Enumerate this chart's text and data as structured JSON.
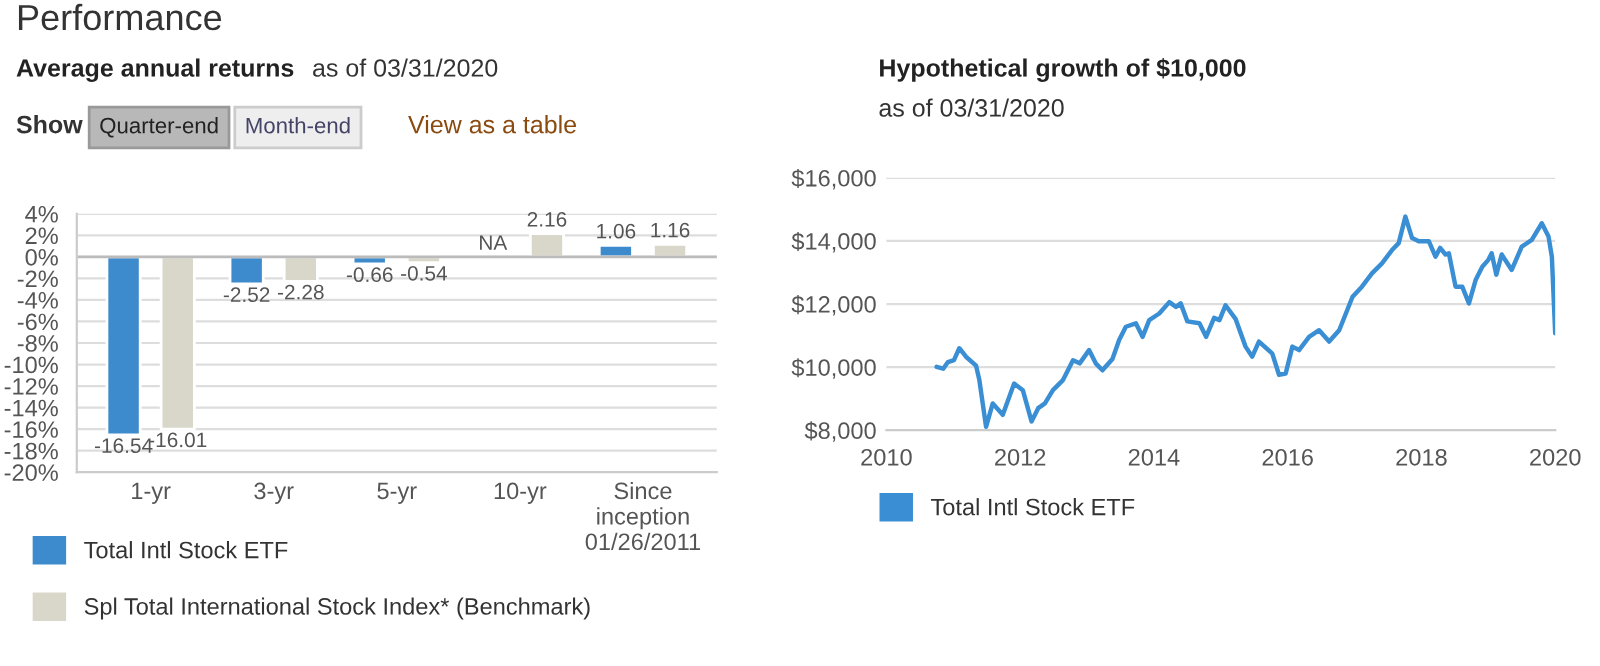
{
  "chart_data": [
    {
      "type": "bar",
      "title": "Average annual returns",
      "subtitle": "as of 03/31/2020",
      "annotations": [
        "Performance",
        "Show",
        "Quarter-end",
        "Month-end",
        "View as a table"
      ],
      "categories": [
        "1-yr",
        "3-yr",
        "5-yr",
        "10-yr",
        "Since inception 01/26/2011"
      ],
      "series": [
        {
          "name": "Total Intl Stock ETF",
          "color": "#3d8bcd",
          "values": [
            -16.54,
            -2.52,
            -0.66,
            null,
            1.06
          ],
          "value_labels": [
            "-16.54",
            "-2.52",
            "-0.66",
            "NA",
            "1.06"
          ]
        },
        {
          "name": "Spl Total International Stock Index* (Benchmark)",
          "color": "#d9d7c9",
          "values": [
            -16.01,
            -2.28,
            -0.54,
            2.16,
            1.16
          ],
          "value_labels": [
            "-16.01",
            "-2.28",
            "-0.54",
            "2.16",
            "1.16"
          ]
        }
      ],
      "ylim": [
        -20,
        4
      ],
      "yticks": [
        {
          "value": 4,
          "label": "4%"
        },
        {
          "value": 2,
          "label": "2%"
        },
        {
          "value": 0,
          "label": "0%"
        },
        {
          "value": -2,
          "label": "-2%"
        },
        {
          "value": -4,
          "label": "-4%"
        },
        {
          "value": -6,
          "label": "-6%"
        },
        {
          "value": -8,
          "label": "-8%"
        },
        {
          "value": -10,
          "label": "-10%"
        },
        {
          "value": -12,
          "label": "-12%"
        },
        {
          "value": -14,
          "label": "-14%"
        },
        {
          "value": -16,
          "label": "-16%"
        },
        {
          "value": -18,
          "label": "-18%"
        },
        {
          "value": -20,
          "label": "-20%"
        }
      ],
      "grid": "y",
      "legend": "bottom"
    },
    {
      "type": "line",
      "title": "Hypothetical growth of $10,000",
      "subtitle": "as of 03/31/2020",
      "x": [
        2010.75,
        2010.85,
        2010.92,
        2011.01,
        2011.09,
        2011.19,
        2011.34,
        2011.39,
        2011.49,
        2011.59,
        2011.74,
        2011.91,
        2012.04,
        2012.17,
        2012.27,
        2012.37,
        2012.49,
        2012.64,
        2012.79,
        2012.89,
        2013.03,
        2013.13,
        2013.23,
        2013.38,
        2013.48,
        2013.58,
        2013.73,
        2013.83,
        2013.93,
        2014.08,
        2014.23,
        2014.33,
        2014.4,
        2014.5,
        2014.68,
        2014.78,
        2014.9,
        2014.98,
        2015.07,
        2015.22,
        2015.37,
        2015.47,
        2015.57,
        2015.77,
        2015.87,
        2015.97,
        2016.07,
        2016.17,
        2016.32,
        2016.47,
        2016.62,
        2016.77,
        2016.97,
        2017.11,
        2017.26,
        2017.41,
        2017.56,
        2017.66,
        2017.76,
        2017.86,
        2017.96,
        2018.11,
        2018.21,
        2018.28,
        2018.36,
        2018.41,
        2018.51,
        2018.61,
        2018.71,
        2018.81,
        2018.91,
        2019.0,
        2019.05,
        2019.12,
        2019.2,
        2019.35,
        2019.5,
        2019.65,
        2019.8,
        2019.9,
        2019.95,
        2020.0
      ],
      "series": [
        {
          "name": "Total Intl Stock ETF",
          "color": "#3a8fd4",
          "values": [
            10010,
            9950,
            10160,
            10220,
            10600,
            10330,
            10050,
            9590,
            8110,
            8850,
            8490,
            9480,
            9270,
            8280,
            8700,
            8850,
            9270,
            9590,
            10220,
            10120,
            10540,
            10120,
            9900,
            10260,
            10860,
            11280,
            11390,
            10960,
            11490,
            11700,
            12060,
            11910,
            12020,
            11450,
            11390,
            10960,
            11560,
            11490,
            11960,
            11530,
            10650,
            10330,
            10810,
            10430,
            9760,
            9800,
            10650,
            10540,
            10960,
            11170,
            10810,
            11170,
            12230,
            12550,
            12970,
            13290,
            13710,
            13930,
            14770,
            14090,
            13990,
            13990,
            13500,
            13780,
            13570,
            13610,
            12550,
            12550,
            12020,
            12760,
            13180,
            13400,
            13610,
            12930,
            13570,
            13080,
            13820,
            14030,
            14560,
            14140,
            13500,
            11070
          ]
        }
      ],
      "xlim": [
        2010,
        2020
      ],
      "xticks": [
        2010,
        2012,
        2014,
        2016,
        2018,
        2020
      ],
      "ylim": [
        8000,
        16000
      ],
      "yticks": [
        {
          "value": 8000,
          "label": "$8,000"
        },
        {
          "value": 10000,
          "label": "$10,000"
        },
        {
          "value": 12000,
          "label": "$12,000"
        },
        {
          "value": 14000,
          "label": "$14,000"
        },
        {
          "value": 16000,
          "label": "$16,000"
        }
      ],
      "grid": "y",
      "legend": "bottom"
    }
  ]
}
